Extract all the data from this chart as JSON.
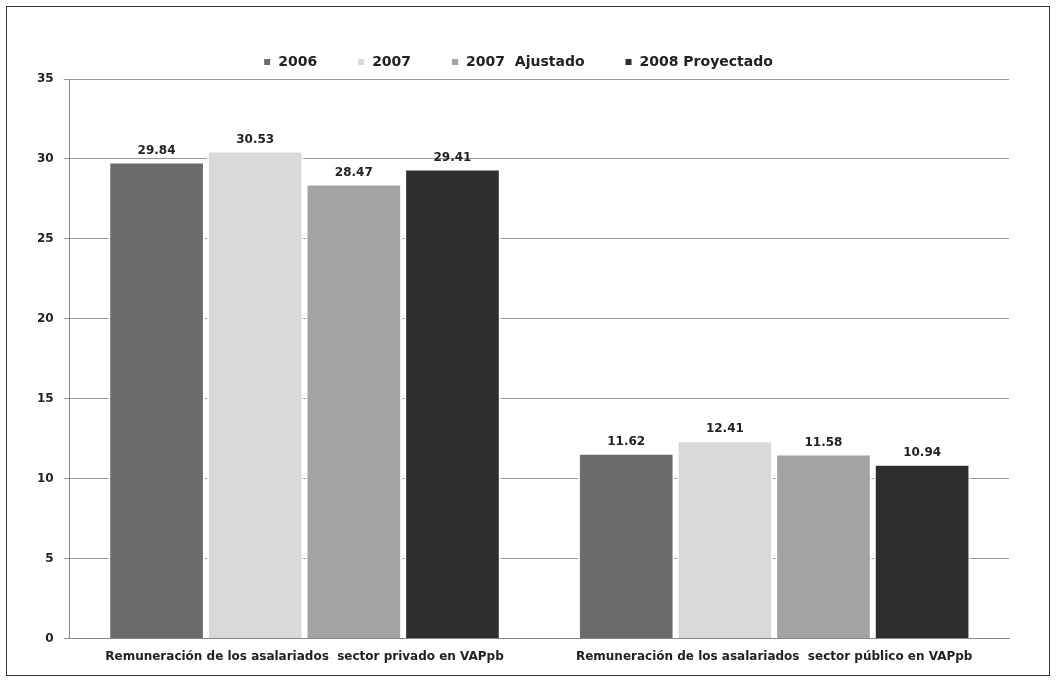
{
  "chart_data": {
    "type": "bar",
    "categories": [
      "Remuneración de los asalariados  sector privado en VAPpb",
      "Remuneración de los asalariados  sector público en VAPpb"
    ],
    "series": [
      {
        "name": "2006",
        "color": "#6b6b6b",
        "values": [
          29.84,
          11.62
        ]
      },
      {
        "name": "2007",
        "color": "#d9d9d9",
        "values": [
          30.53,
          12.41
        ]
      },
      {
        "name": "2007  Ajustado",
        "color": "#a3a3a3",
        "values": [
          28.47,
          11.58
        ]
      },
      {
        "name": "2008 Proyectado",
        "color": "#2e2e2e",
        "values": [
          29.41,
          10.94
        ]
      }
    ],
    "ylim": [
      0,
      35
    ],
    "yticks": [
      0,
      5,
      10,
      15,
      20,
      25,
      30,
      35
    ],
    "grid": "y",
    "legend": "top",
    "data_labels": true
  }
}
